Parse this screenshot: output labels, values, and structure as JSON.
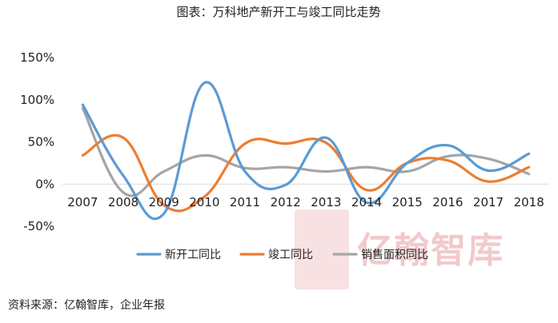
{
  "chart_data": {
    "type": "line",
    "title": "图表：万科地产新开工与竣工同比走势",
    "categories": [
      "2007",
      "2008",
      "2009",
      "2010",
      "2011",
      "2012",
      "2013",
      "2014",
      "2015",
      "2016",
      "2017",
      "2018"
    ],
    "y_ticks": [
      "150%",
      "100%",
      "50%",
      "0%",
      "-50%"
    ],
    "y_tick_values": [
      150,
      100,
      50,
      0,
      -50
    ],
    "ylim": [
      -50,
      150
    ],
    "grid": false,
    "legend": "bottom",
    "series": [
      {
        "name": "新开工同比",
        "color": "#5b9bd5",
        "values": [
          94,
          10,
          -35,
          120,
          15,
          -1,
          55,
          -22,
          25,
          46,
          16,
          36
        ]
      },
      {
        "name": "竣工同比",
        "color": "#ed7d31",
        "values": [
          34,
          55,
          -25,
          -15,
          48,
          48,
          49,
          -7,
          25,
          28,
          3,
          20
        ]
      },
      {
        "name": "销售面积同比",
        "color": "#a5a5a5",
        "values": [
          90,
          -10,
          15,
          34,
          19,
          20,
          15,
          20,
          15,
          33,
          30,
          12
        ]
      }
    ]
  },
  "watermark": {
    "text": "亿翰智库",
    "seal_chars": "亿翰",
    "color": "#f2c9cc"
  },
  "source": "资料来源：亿翰智库，企业年报"
}
